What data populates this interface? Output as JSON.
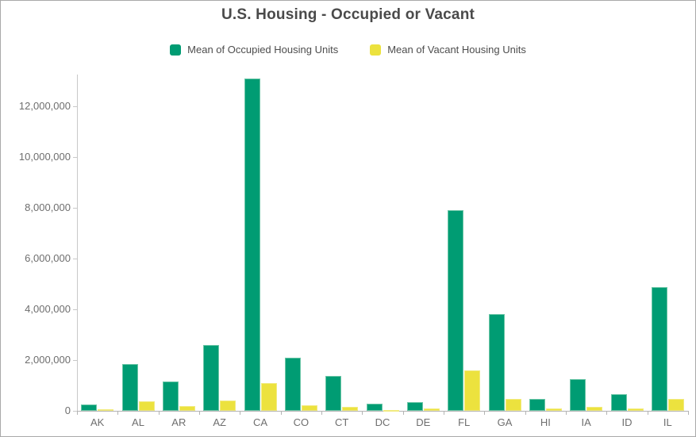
{
  "title": "U.S. Housing - Occupied or Vacant",
  "legend": {
    "items": [
      {
        "label": "Mean of Occupied Housing Units",
        "color": "#009c73"
      },
      {
        "label": "Mean of Vacant Housing Units",
        "color": "#ece23e"
      }
    ]
  },
  "colors": {
    "occupied": "#009c73",
    "occupied_border": "#6cc6a7",
    "vacant": "#ece23e",
    "vacant_border": "#f1ea80",
    "axis_y": "#c8c8c8",
    "axis_x": "#b4b4b4",
    "tick_label": "#6e6e6e",
    "title_text": "#4a4a4a",
    "legend_text": "#4d4d4d"
  },
  "chart_data": {
    "type": "bar",
    "title": "U.S. Housing - Occupied or Vacant",
    "xlabel": "",
    "ylabel": "",
    "grid": false,
    "legend_position": "top",
    "categories": [
      "AK",
      "AL",
      "AR",
      "AZ",
      "CA",
      "CO",
      "CT",
      "DC",
      "DE",
      "FL",
      "GA",
      "HI",
      "IA",
      "ID",
      "IL"
    ],
    "series": [
      {
        "name": "Mean of Occupied Housing Units",
        "color": "#009c73",
        "values": [
          250000,
          1850000,
          1150000,
          2600000,
          13100000,
          2100000,
          1375000,
          280000,
          350000,
          7900000,
          3800000,
          460000,
          1250000,
          650000,
          4870000
        ]
      },
      {
        "name": "Mean of Vacant Housing Units",
        "color": "#ece23e",
        "values": [
          60000,
          380000,
          200000,
          400000,
          1100000,
          220000,
          160000,
          40000,
          80000,
          1600000,
          480000,
          90000,
          150000,
          80000,
          470000
        ]
      }
    ],
    "ylim": [
      0,
      13250000
    ],
    "yticks": [
      0,
      2000000,
      4000000,
      6000000,
      8000000,
      10000000,
      12000000
    ],
    "ytick_labels": [
      "0",
      "2,000,000",
      "4,000,000",
      "6,000,000",
      "8,000,000",
      "10,000,000",
      "12,000,000"
    ]
  }
}
